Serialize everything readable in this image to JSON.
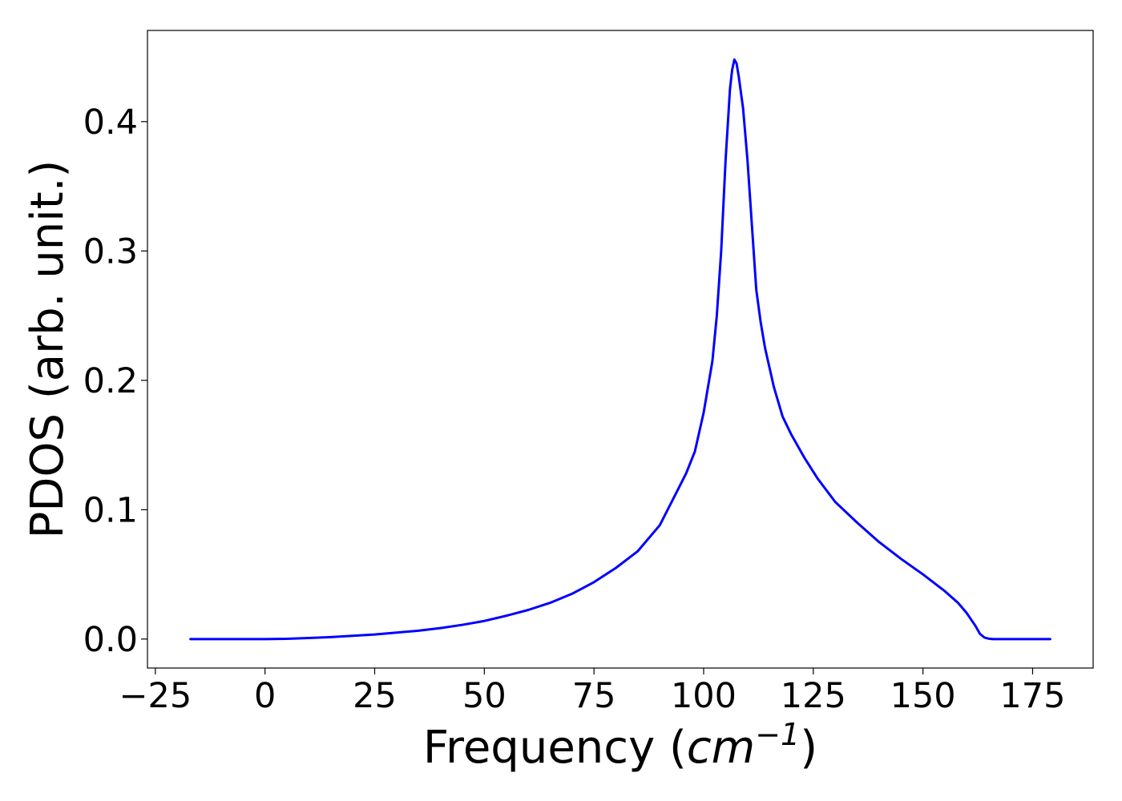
{
  "chart_data": {
    "type": "line",
    "title": "",
    "xlabel": "Frequency (cm⁻¹)",
    "xlabel_parts": {
      "prefix": "Frequency (",
      "var": "cm",
      "exp": "−1",
      "suffix": ")"
    },
    "ylabel": "PDOS (arb. unit.)",
    "xlim": [
      -26.8,
      188.8
    ],
    "ylim": [
      -0.0224,
      0.4705
    ],
    "xticks": [
      -25,
      0,
      25,
      50,
      75,
      100,
      125,
      150,
      175
    ],
    "xtick_labels": [
      "−25",
      "0",
      "25",
      "50",
      "75",
      "100",
      "125",
      "150",
      "175"
    ],
    "yticks": [
      0.0,
      0.1,
      0.2,
      0.3,
      0.4
    ],
    "ytick_labels": [
      "0.0",
      "0.1",
      "0.2",
      "0.3",
      "0.4"
    ],
    "grid": false,
    "legend": "none",
    "colors": {
      "line": "#0000ff",
      "axes": "#000000"
    },
    "series": [
      {
        "x": [
          -17,
          0,
          5,
          10,
          15,
          20,
          25,
          30,
          35,
          40,
          45,
          50,
          55,
          60,
          65,
          70,
          75,
          80,
          85,
          90,
          93,
          96,
          98,
          100,
          102,
          103,
          104,
          105,
          106,
          106.5,
          107,
          107.5,
          108,
          109,
          110,
          111,
          112,
          113,
          114,
          116,
          118,
          120,
          123,
          126,
          130,
          135,
          140,
          145,
          150,
          155,
          158,
          160,
          162,
          163,
          164,
          165,
          166,
          170,
          179
        ],
        "y": [
          0,
          0,
          0.0002,
          0.0008,
          0.0015,
          0.0025,
          0.0035,
          0.005,
          0.0065,
          0.0085,
          0.011,
          0.014,
          0.018,
          0.0225,
          0.028,
          0.035,
          0.044,
          0.055,
          0.068,
          0.088,
          0.108,
          0.128,
          0.145,
          0.175,
          0.215,
          0.25,
          0.3,
          0.37,
          0.425,
          0.44,
          0.448,
          0.445,
          0.435,
          0.41,
          0.37,
          0.32,
          0.27,
          0.245,
          0.225,
          0.195,
          0.172,
          0.158,
          0.14,
          0.124,
          0.106,
          0.09,
          0.075,
          0.062,
          0.05,
          0.037,
          0.028,
          0.02,
          0.01,
          0.004,
          0.0012,
          0.0003,
          0,
          0,
          0
        ]
      }
    ]
  }
}
